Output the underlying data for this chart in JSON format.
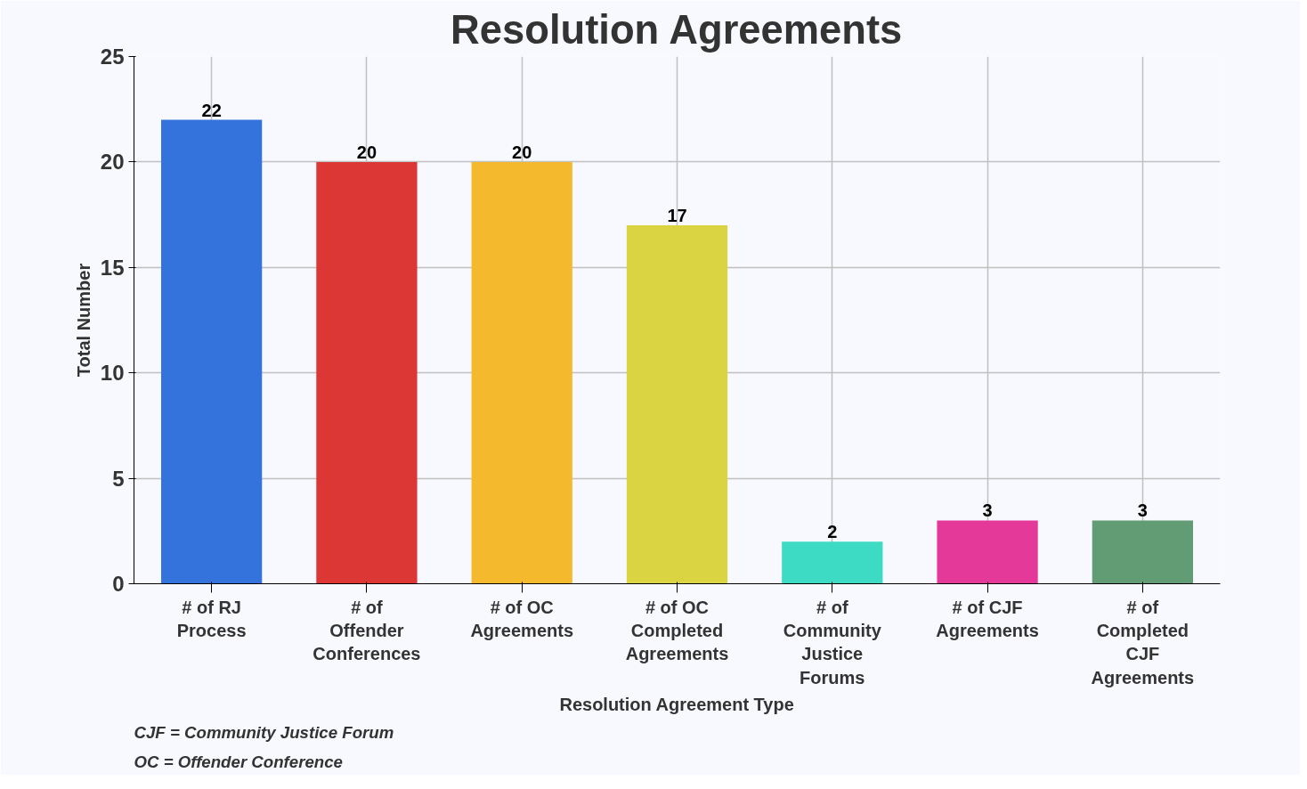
{
  "chart_data": {
    "type": "bar",
    "title": "Resolution Agreements",
    "xlabel": "Resolution Agreement Type",
    "ylabel": "Total Number",
    "categories": [
      "# of RJ Process",
      "# of Offender Conferences",
      "# of OC Agreements",
      "# of OC Completed Agreements",
      "# of Community Justice Forums",
      "# of CJF Agreements",
      "# of Completed CJF Agreements"
    ],
    "values": [
      22,
      20,
      20,
      17,
      2,
      3,
      3
    ],
    "colors": [
      "#3473db",
      "#dc3734",
      "#f5b92e",
      "#dad442",
      "#3ddbc4",
      "#e5399a",
      "#629c74"
    ],
    "ylim": [
      0,
      25
    ],
    "yticks": [
      0,
      5,
      10,
      15,
      20,
      25
    ],
    "grid": true,
    "data_labels": true,
    "annotations": [
      "CJF = Community Justice Forum",
      "OC = Offender Conference"
    ]
  }
}
